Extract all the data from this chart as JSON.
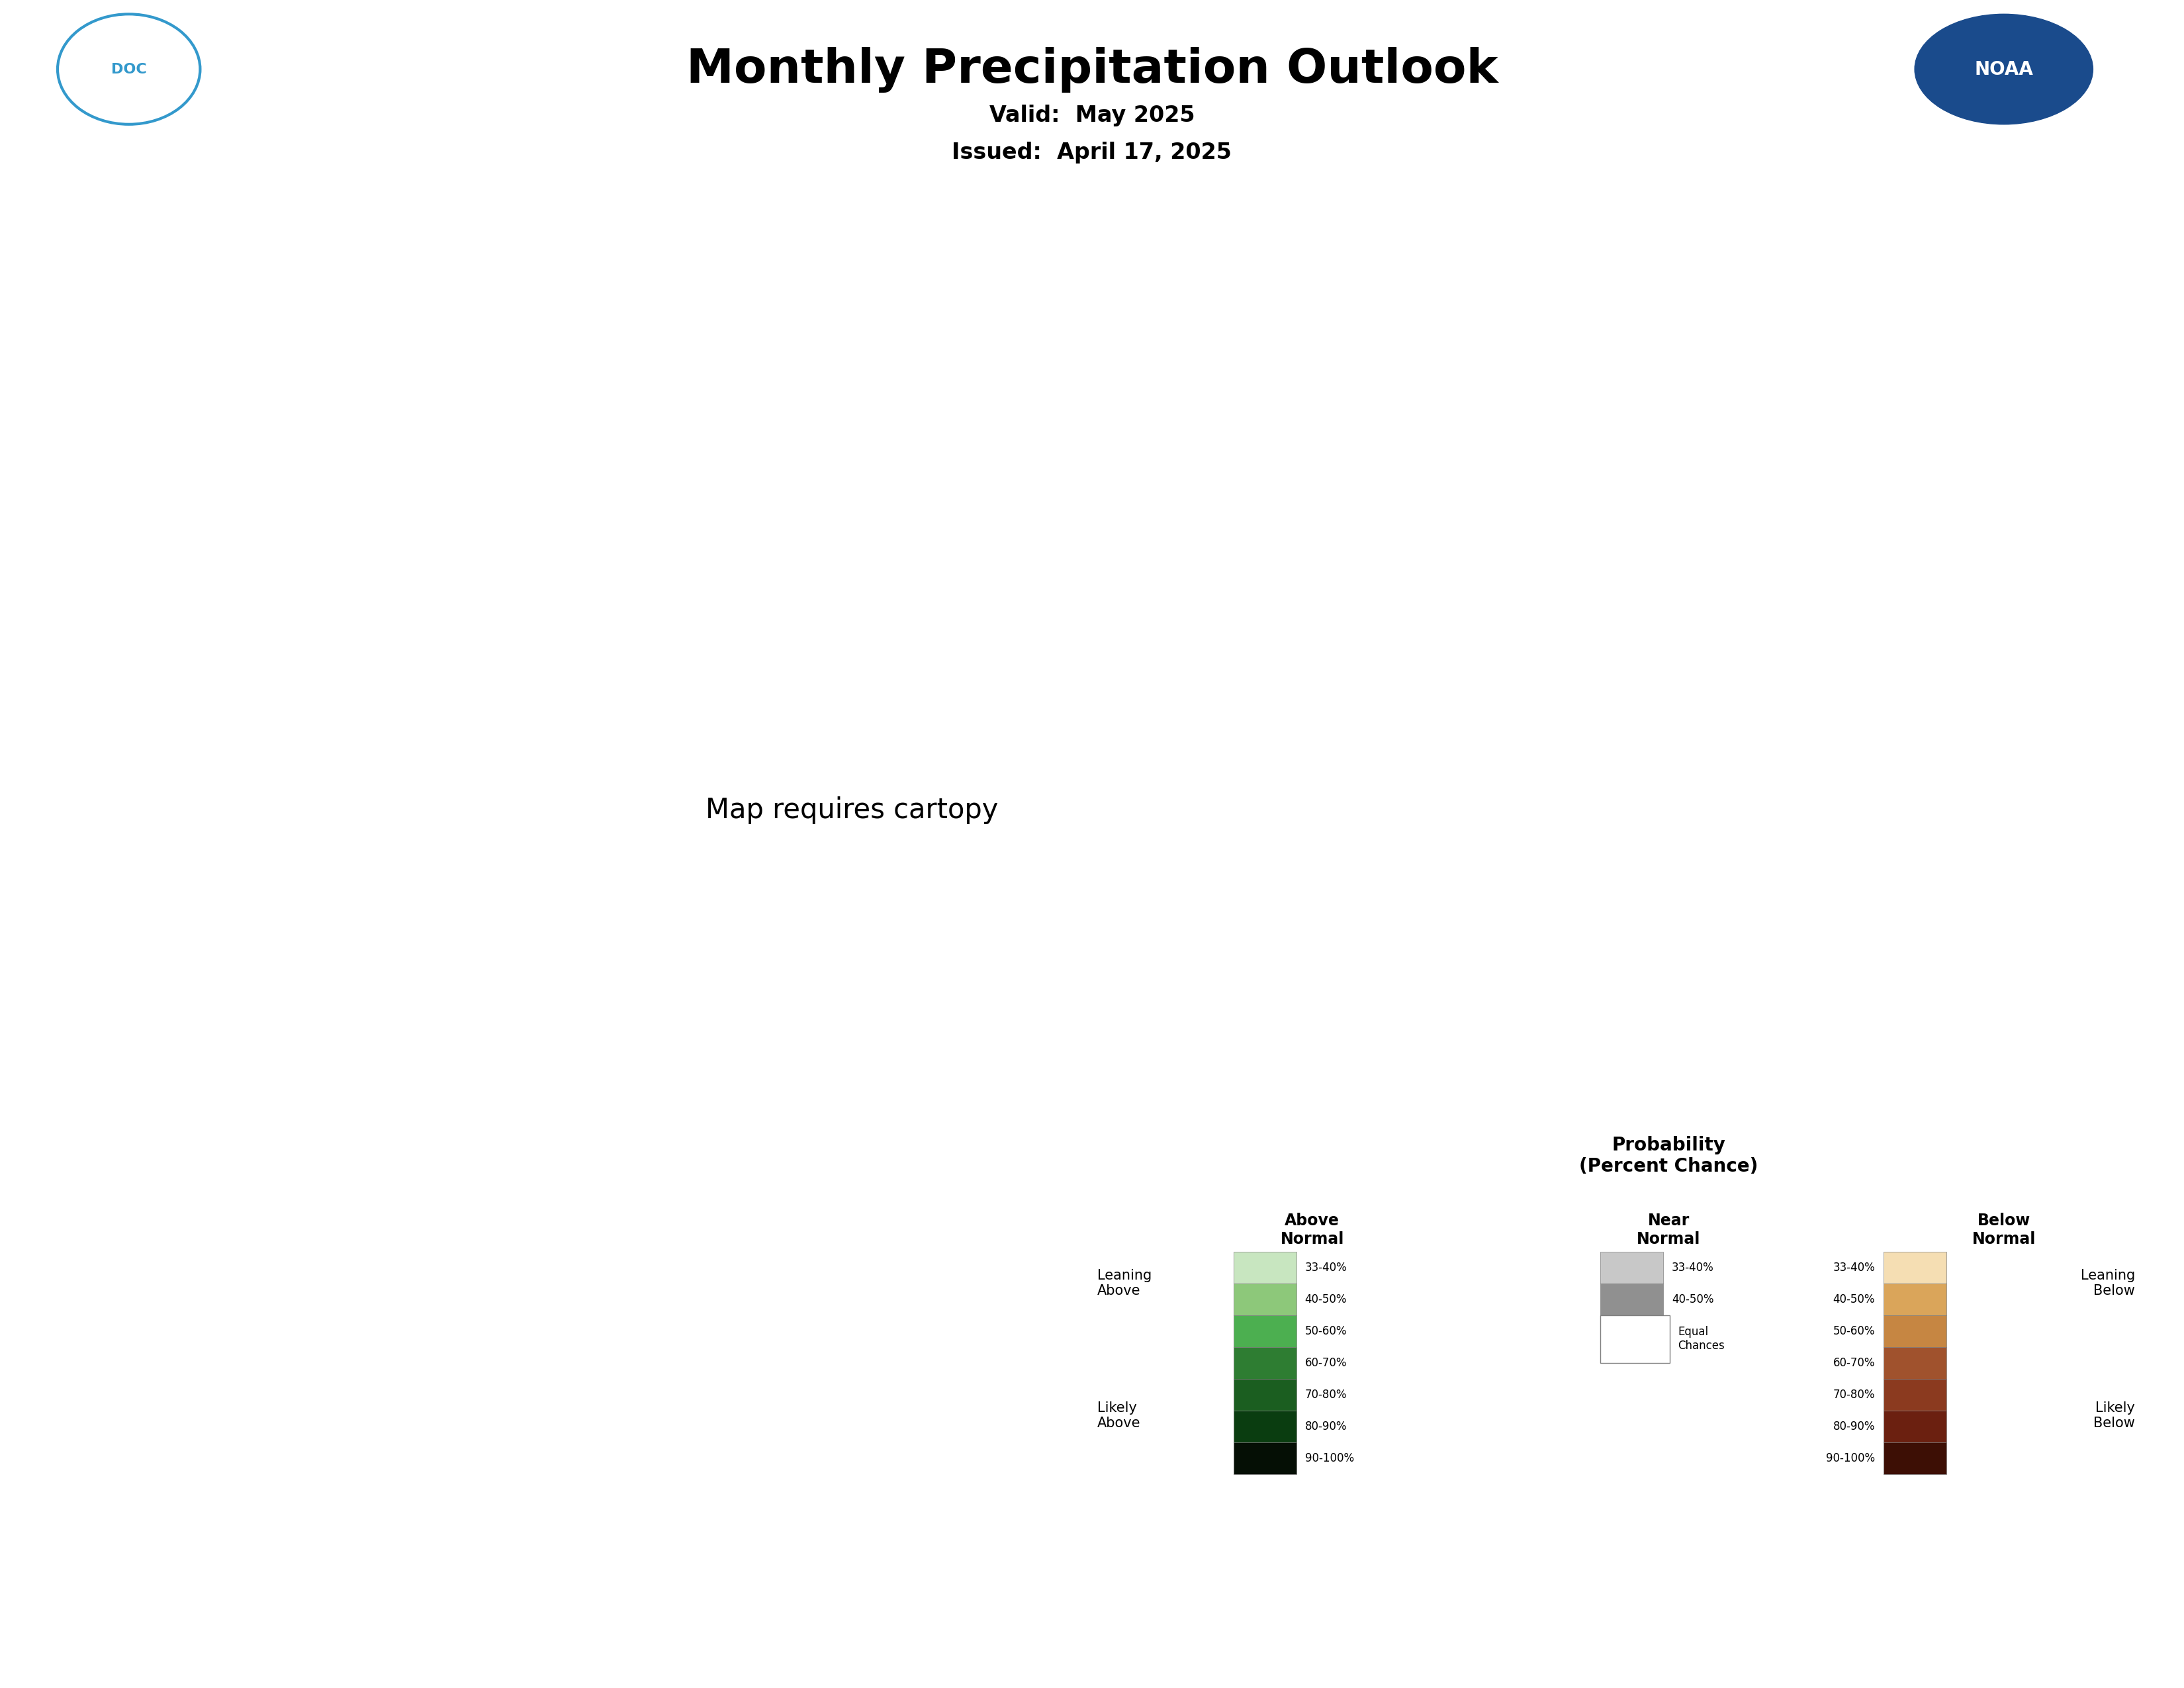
{
  "title": "Monthly Precipitation Outlook",
  "valid": "Valid:  May 2025",
  "issued": "Issued:  April 17, 2025",
  "title_fontsize": 52,
  "subtitle_fontsize": 24,
  "background_color": "#ffffff",
  "c_below_dark": "#b5541a",
  "c_below_med": "#cc7a30",
  "c_below_light": "#e8c98a",
  "c_above_dark": "#5db35d",
  "c_above_light": "#a8d5a0",
  "c_equal": "#ffffff",
  "legend": {
    "above_colors": [
      "#c8e6c0",
      "#8dc87a",
      "#4caf50",
      "#2e7d32",
      "#1b5e20",
      "#0a3d10",
      "#050f05"
    ],
    "above_labels": [
      "33-40%",
      "40-50%",
      "50-60%",
      "60-70%",
      "70-80%",
      "80-90%",
      "90-100%"
    ],
    "near_colors": [
      "#c8c8c8",
      "#909090"
    ],
    "near_labels": [
      "33-40%",
      "40-50%"
    ],
    "below_colors": [
      "#f5deb3",
      "#daa55a",
      "#c68642",
      "#a0522d",
      "#8b3a1f",
      "#6b2010",
      "#3d0f05"
    ],
    "below_labels": [
      "33-40%",
      "40-50%",
      "50-60%",
      "60-70%",
      "70-80%",
      "80-90%",
      "90-100%"
    ]
  }
}
